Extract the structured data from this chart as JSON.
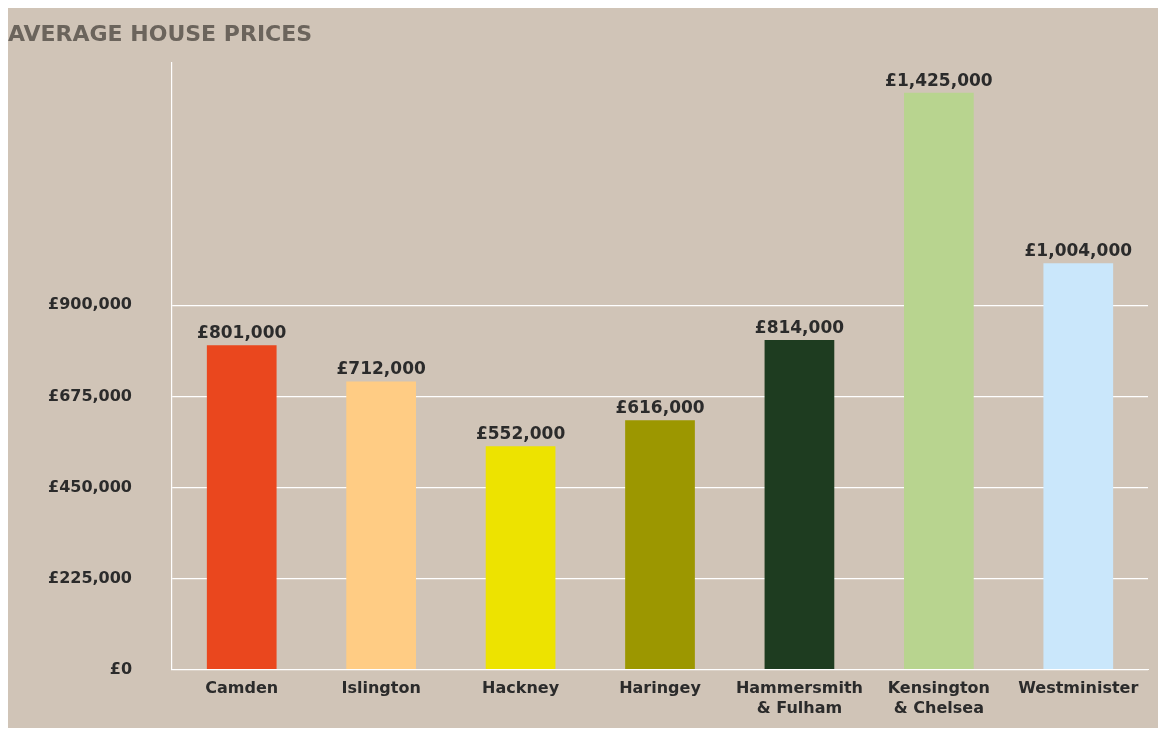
{
  "chart_data": {
    "type": "bar",
    "title": "AVERAGE HOUSE PRICES",
    "categories": [
      "Camden",
      "Islington",
      "Hackney",
      "Haringey",
      "Hammersmith & Fulham",
      "Kensington & Chelsea",
      "Westminister"
    ],
    "values": [
      801000,
      712000,
      552000,
      616000,
      814000,
      1425000,
      1004000
    ],
    "colors": [
      "#ea471e",
      "#ffcc84",
      "#ede300",
      "#9c9700",
      "#1e3c20",
      "#b8d48f",
      "#cae7fb"
    ],
    "value_labels": [
      "£801,000",
      "£712,000",
      "£552,000",
      "£616,000",
      "£814,000",
      "£1,425,000",
      "£1,004,000"
    ],
    "yticks": [
      {
        "value": 0,
        "label": "£0"
      },
      {
        "value": 225000,
        "label": "£225,000"
      },
      {
        "value": 450000,
        "label": "£450,000"
      },
      {
        "value": 675000,
        "label": "£675,000"
      },
      {
        "value": 900000,
        "label": "£900,000"
      }
    ],
    "ylim": [
      0,
      1500000
    ],
    "grid": "y",
    "legend": false
  }
}
